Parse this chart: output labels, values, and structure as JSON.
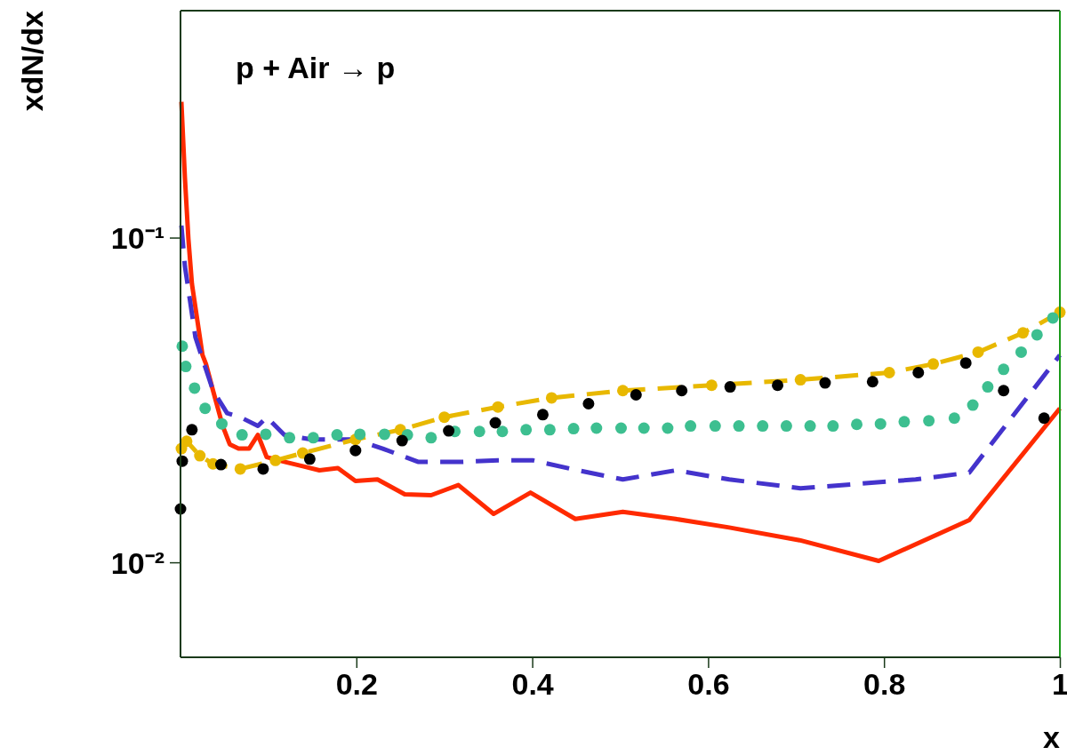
{
  "chart_data": {
    "type": "line",
    "title": "p + Air → p",
    "xlabel": "x",
    "ylabel": "xdN/dx",
    "log": "y",
    "grid": false,
    "xlim": [
      0,
      1
    ],
    "ylim": [
      0.0051,
      0.5
    ],
    "xticks": [
      0.2,
      0.4,
      0.6,
      0.8,
      1
    ],
    "yticks": [
      {
        "value": 0.01,
        "label": "10⁻²"
      },
      {
        "value": 0.1,
        "label": "10⁻¹"
      }
    ],
    "series": [
      {
        "line_style": "solid",
        "marker": "none",
        "color": "#ff2a00",
        "x": [
          0.001,
          0.005,
          0.009,
          0.013,
          0.019,
          0.025,
          0.029,
          0.037,
          0.048,
          0.056,
          0.066,
          0.078,
          0.088,
          0.098,
          0.118,
          0.138,
          0.158,
          0.179,
          0.199,
          0.224,
          0.255,
          0.285,
          0.316,
          0.356,
          0.398,
          0.449,
          0.503,
          0.563,
          0.624,
          0.704,
          0.794,
          0.897,
          1.0
        ],
        "values": [
          0.262,
          0.153,
          0.099,
          0.072,
          0.056,
          0.0435,
          0.0408,
          0.0338,
          0.0263,
          0.0231,
          0.0224,
          0.0224,
          0.0247,
          0.0211,
          0.0204,
          0.0198,
          0.0192,
          0.0195,
          0.0178,
          0.018,
          0.0162,
          0.0161,
          0.0173,
          0.0141,
          0.0164,
          0.0136,
          0.0143,
          0.0136,
          0.0128,
          0.0117,
          0.0101,
          0.0135,
          0.0298
        ]
      },
      {
        "line_style": "dashed",
        "marker": "none",
        "color": "#4433cc",
        "x": [
          0.001,
          0.005,
          0.011,
          0.017,
          0.027,
          0.037,
          0.053,
          0.068,
          0.088,
          0.098,
          0.118,
          0.149,
          0.199,
          0.23,
          0.27,
          0.321,
          0.361,
          0.401,
          0.452,
          0.503,
          0.563,
          0.624,
          0.705,
          0.765,
          0.836,
          0.897,
          1.0
        ],
        "values": [
          0.109,
          0.0817,
          0.0635,
          0.0493,
          0.0408,
          0.0338,
          0.0288,
          0.028,
          0.0263,
          0.028,
          0.0247,
          0.0239,
          0.0239,
          0.0224,
          0.0204,
          0.0204,
          0.0206,
          0.0206,
          0.0192,
          0.018,
          0.0192,
          0.018,
          0.0169,
          0.0174,
          0.018,
          0.0189,
          0.0435
        ]
      },
      {
        "line_style": "dashed",
        "marker": "circle",
        "color": "#e8b800",
        "x": [
          0.001,
          0.007,
          0.022,
          0.037,
          0.068,
          0.108,
          0.139,
          0.199,
          0.25,
          0.3,
          0.361,
          0.422,
          0.503,
          0.604,
          0.705,
          0.806,
          0.856,
          0.907,
          0.958,
          1.0
        ],
        "values": [
          0.0224,
          0.0236,
          0.0213,
          0.0201,
          0.0194,
          0.0206,
          0.0217,
          0.0239,
          0.0256,
          0.028,
          0.0301,
          0.0321,
          0.0338,
          0.0351,
          0.0365,
          0.0384,
          0.0408,
          0.0444,
          0.0509,
          0.0589
        ]
      },
      {
        "type": "scatter",
        "marker": "circle",
        "color": "#3dbf90",
        "x": [
          0.002,
          0.006,
          0.016,
          0.028,
          0.047,
          0.07,
          0.097,
          0.124,
          0.151,
          0.178,
          0.204,
          0.232,
          0.258,
          0.285,
          0.312,
          0.34,
          0.366,
          0.393,
          0.42,
          0.447,
          0.473,
          0.501,
          0.527,
          0.554,
          0.58,
          0.608,
          0.635,
          0.662,
          0.689,
          0.716,
          0.742,
          0.769,
          0.796,
          0.823,
          0.851,
          0.88,
          0.901,
          0.918,
          0.936,
          0.956,
          0.974,
          0.992
        ],
        "values": [
          0.0463,
          0.0401,
          0.0344,
          0.0298,
          0.0267,
          0.0247,
          0.0248,
          0.0242,
          0.0242,
          0.0247,
          0.0248,
          0.0248,
          0.0247,
          0.0242,
          0.0253,
          0.0253,
          0.0253,
          0.0256,
          0.0256,
          0.0258,
          0.0259,
          0.0259,
          0.0259,
          0.0259,
          0.0263,
          0.0263,
          0.0263,
          0.0263,
          0.0263,
          0.0263,
          0.0263,
          0.0266,
          0.0267,
          0.0271,
          0.0273,
          0.0278,
          0.0305,
          0.0347,
          0.0393,
          0.0444,
          0.0502,
          0.0566
        ]
      },
      {
        "type": "scatter",
        "marker": "circle",
        "color": "#000000",
        "x": [
          0.0,
          0.002,
          0.013,
          0.046,
          0.094,
          0.147,
          0.199,
          0.252,
          0.305,
          0.358,
          0.412,
          0.464,
          0.518,
          0.57,
          0.625,
          0.679,
          0.733,
          0.787,
          0.839,
          0.893,
          0.936,
          0.982
        ],
        "values": [
          0.0146,
          0.0205,
          0.0256,
          0.02,
          0.0194,
          0.0208,
          0.0221,
          0.0237,
          0.0254,
          0.0269,
          0.0285,
          0.0308,
          0.0328,
          0.0338,
          0.0347,
          0.0351,
          0.0357,
          0.036,
          0.0384,
          0.0411,
          0.0338,
          0.0278
        ]
      }
    ]
  }
}
